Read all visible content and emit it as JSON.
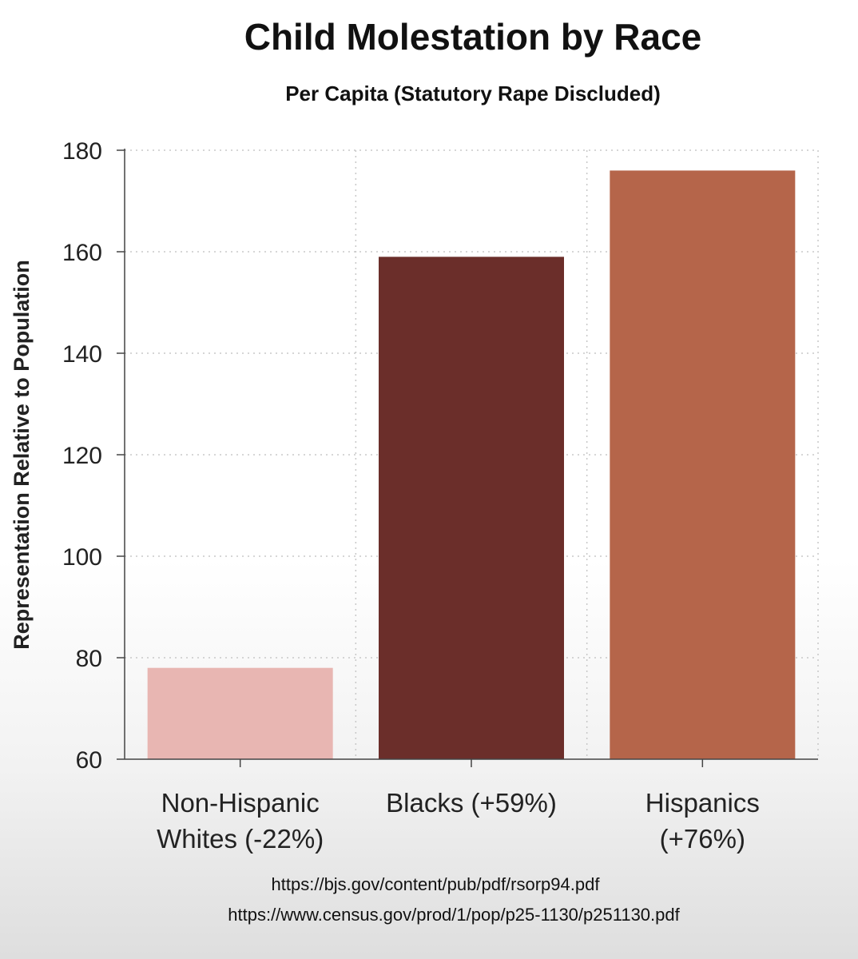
{
  "chart_data": {
    "type": "bar",
    "title": "Child Molestation by Race",
    "subtitle": "Per Capita (Statutory Rape Discluded)",
    "xlabel": "",
    "ylabel": "Representation Relative to Population",
    "ylim": [
      60,
      180
    ],
    "yticks": [
      60,
      80,
      100,
      120,
      140,
      160,
      180
    ],
    "grid": true,
    "categories": [
      [
        "Non-Hispanic",
        "Whites (-22%)"
      ],
      [
        "Blacks (+59%)"
      ],
      [
        "Hispanics",
        "(+76%)"
      ]
    ],
    "values": [
      78,
      159,
      176
    ],
    "colors": [
      "#e8b6b2",
      "#6b2e2a",
      "#b5654a"
    ]
  },
  "sources": [
    "https://bjs.gov/content/pub/pdf/rsorp94.pdf",
    "https://www.census.gov/prod/1/pop/p25-1130/p251130.pdf"
  ]
}
